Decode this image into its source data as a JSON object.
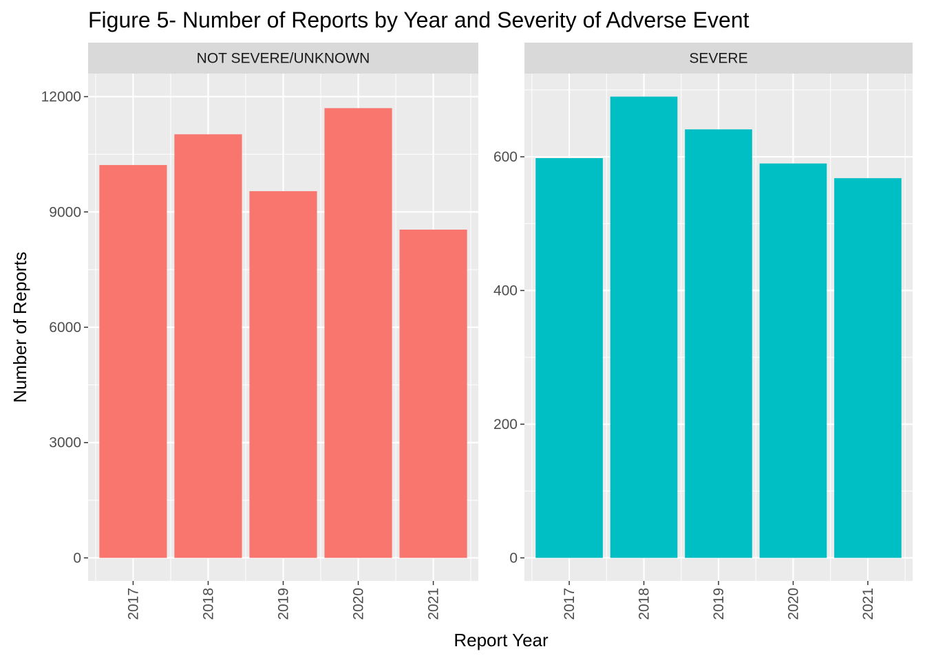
{
  "title": "Figure 5- Number of Reports by Year and Severity of Adverse Event",
  "xlabel": "Report Year",
  "ylabel": "Number of Reports",
  "colors": {
    "panel_bg": "#ebebeb",
    "strip_bg": "#d9d9d9",
    "grid": "#ffffff",
    "tick_text": "#4d4d4d",
    "not_severe": "#f8766d",
    "severe": "#00bfc4"
  },
  "chart_data": [
    {
      "type": "bar",
      "panel": "NOT SEVERE/UNKNOWN",
      "categories": [
        "2017",
        "2018",
        "2019",
        "2020",
        "2021"
      ],
      "values": [
        10220,
        11020,
        9540,
        11700,
        8540
      ],
      "ylim": [
        -600,
        12600
      ],
      "yticks": [
        0,
        3000,
        6000,
        9000,
        12000
      ],
      "ytick_labels": [
        "0",
        "3000",
        "6000",
        "9000",
        "12000"
      ],
      "color": "#f8766d",
      "grid": true
    },
    {
      "type": "bar",
      "panel": "SEVERE",
      "categories": [
        "2017",
        "2018",
        "2019",
        "2020",
        "2021"
      ],
      "values": [
        598,
        690,
        641,
        590,
        568
      ],
      "ylim": [
        -34.5,
        724.5
      ],
      "yticks": [
        0,
        200,
        400,
        600
      ],
      "ytick_labels": [
        "0",
        "200",
        "400",
        "600"
      ],
      "color": "#00bfc4",
      "grid": true
    }
  ]
}
